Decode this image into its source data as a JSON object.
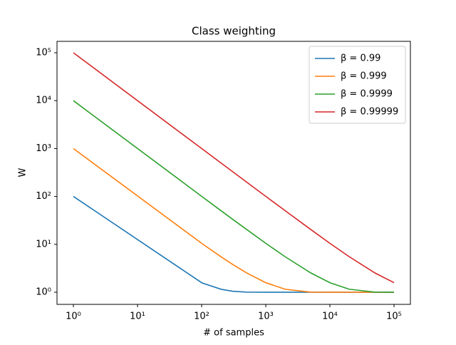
{
  "chart_data": {
    "type": "line",
    "title": "Class weighting",
    "x_label": "# of samples",
    "y_label": "W",
    "x": [
      1,
      101,
      201,
      301,
      501,
      1001,
      2001,
      5001,
      10001,
      20001,
      50001,
      100000
    ],
    "series": [
      {
        "name": "β = 0.99",
        "color": "#1f77b4",
        "values": [
          100,
          1.568,
          1.153,
          1.051,
          1.0065,
          1,
          1,
          1,
          1,
          1,
          1,
          1
        ]
      },
      {
        "name": "β = 0.999",
        "color": "#ff7f0e",
        "values": [
          1000,
          10.41,
          5.49,
          3.84,
          2.537,
          1.58,
          1.156,
          1.007,
          1,
          1,
          1,
          1
        ]
      },
      {
        "name": "β = 0.9999",
        "color": "#2ca02c",
        "values": [
          10000,
          99.5,
          50.2,
          33.7,
          20.5,
          10.5,
          5.52,
          2.54,
          1.58,
          1.156,
          1.0068,
          1
        ]
      },
      {
        "name": "β = 0.99999",
        "color": "#d62728",
        "values": [
          100000,
          990.6,
          497.5,
          332.7,
          200.1,
          100.4,
          50.5,
          20.5,
          10.5,
          5.52,
          2.54,
          1.582
        ]
      }
    ],
    "xlog": true,
    "ylog": true,
    "xlim": [
      0.555,
      180000
    ],
    "ylim": [
      0.558,
      173000
    ],
    "xticks": [
      {
        "value": 1,
        "label": "10⁰"
      },
      {
        "value": 10,
        "label": "10¹"
      },
      {
        "value": 100,
        "label": "10²"
      },
      {
        "value": 1000,
        "label": "10³"
      },
      {
        "value": 10000,
        "label": "10⁴"
      },
      {
        "value": 100000,
        "label": "10⁵"
      }
    ],
    "yticks": [
      {
        "value": 1,
        "label": "10⁰"
      },
      {
        "value": 10,
        "label": "10¹"
      },
      {
        "value": 100,
        "label": "10²"
      },
      {
        "value": 1000,
        "label": "10³"
      },
      {
        "value": 10000,
        "label": "10⁴"
      },
      {
        "value": 100000,
        "label": "10⁵"
      }
    ],
    "legend": "upper right"
  }
}
